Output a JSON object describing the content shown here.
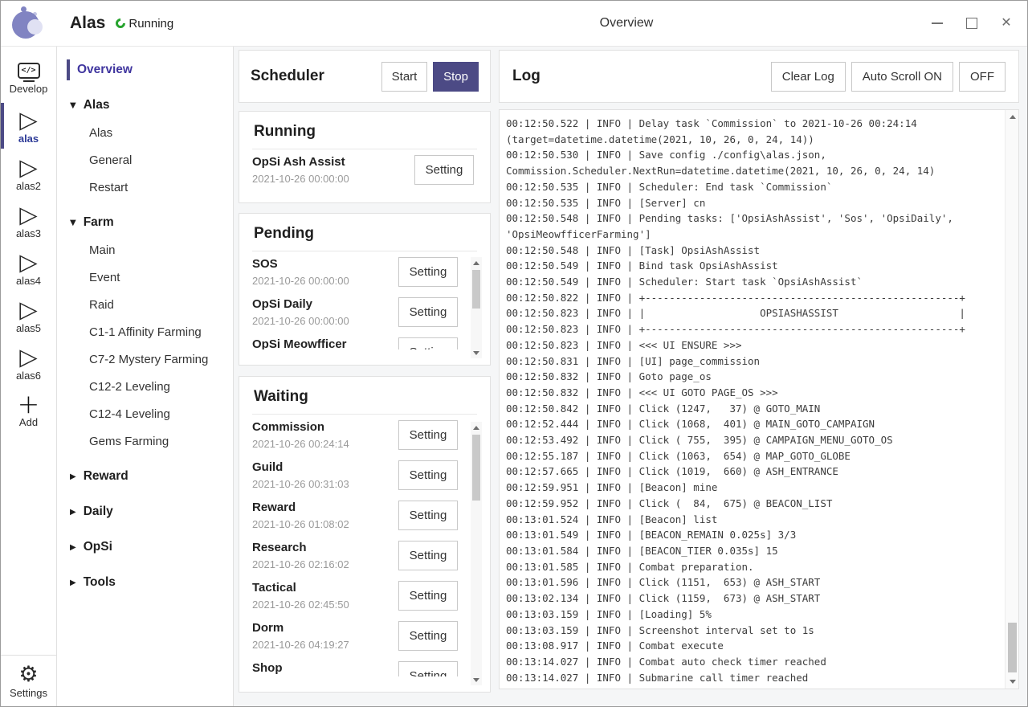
{
  "colors": {
    "accent": "#4c4a85",
    "active_nav_text": "#40369f",
    "running_green": "#26a32d",
    "logo_purple": "#8184c2",
    "logo_light": "#e0e1f3"
  },
  "titlebar": {
    "app_title": "Alas",
    "status_label": "Running",
    "window_title": "Overview"
  },
  "sidebar": {
    "items": [
      {
        "label": "Develop",
        "icon": "code-monitor",
        "active": false
      },
      {
        "label": "alas",
        "icon": "play",
        "active": true
      },
      {
        "label": "alas2",
        "icon": "play",
        "active": false
      },
      {
        "label": "alas3",
        "icon": "play",
        "active": false
      },
      {
        "label": "alas4",
        "icon": "play",
        "active": false
      },
      {
        "label": "alas5",
        "icon": "play",
        "active": false
      },
      {
        "label": "alas6",
        "icon": "play",
        "active": false
      },
      {
        "label": "Add",
        "icon": "plus",
        "active": false
      }
    ],
    "settings": {
      "label": "Settings"
    }
  },
  "nav": {
    "items": [
      {
        "label": "Overview",
        "type": "link",
        "active": true
      },
      {
        "label": "Alas",
        "type": "group",
        "expanded": true
      },
      {
        "label": "Alas",
        "type": "child"
      },
      {
        "label": "General",
        "type": "child"
      },
      {
        "label": "Restart",
        "type": "child"
      },
      {
        "label": "Farm",
        "type": "group",
        "expanded": true
      },
      {
        "label": "Main",
        "type": "child"
      },
      {
        "label": "Event",
        "type": "child"
      },
      {
        "label": "Raid",
        "type": "child"
      },
      {
        "label": "C1-1 Affinity Farming",
        "type": "child"
      },
      {
        "label": "C7-2 Mystery Farming",
        "type": "child"
      },
      {
        "label": "C12-2 Leveling",
        "type": "child"
      },
      {
        "label": "C12-4 Leveling",
        "type": "child"
      },
      {
        "label": "Gems Farming",
        "type": "child"
      },
      {
        "label": "Reward",
        "type": "group",
        "expanded": false
      },
      {
        "label": "Daily",
        "type": "group",
        "expanded": false
      },
      {
        "label": "OpSi",
        "type": "group",
        "expanded": false
      },
      {
        "label": "Tools",
        "type": "group",
        "expanded": false
      }
    ]
  },
  "scheduler": {
    "title": "Scheduler",
    "start_label": "Start",
    "stop_label": "Stop"
  },
  "setting_button_label": "Setting",
  "task_groups": [
    {
      "title": "Running",
      "scrollbar": false,
      "tasks": [
        {
          "name": "OpSi Ash Assist",
          "next_run": "2021-10-26 00:00:00"
        }
      ]
    },
    {
      "title": "Pending",
      "scrollbar": true,
      "tasks": [
        {
          "name": "SOS",
          "next_run": "2021-10-26 00:00:00"
        },
        {
          "name": "OpSi Daily",
          "next_run": "2021-10-26 00:00:00"
        },
        {
          "name": "OpSi Meowfficer Farming",
          "next_run": ""
        }
      ]
    },
    {
      "title": "Waiting",
      "scrollbar": true,
      "tasks": [
        {
          "name": "Commission",
          "next_run": "2021-10-26 00:24:14"
        },
        {
          "name": "Guild",
          "next_run": "2021-10-26 00:31:03"
        },
        {
          "name": "Reward",
          "next_run": "2021-10-26 01:08:02"
        },
        {
          "name": "Research",
          "next_run": "2021-10-26 02:16:02"
        },
        {
          "name": "Tactical",
          "next_run": "2021-10-26 02:45:50"
        },
        {
          "name": "Dorm",
          "next_run": "2021-10-26 04:19:27"
        },
        {
          "name": "Shop",
          "next_run": ""
        }
      ]
    }
  ],
  "log": {
    "title": "Log",
    "buttons": [
      "Clear Log",
      "Auto Scroll ON",
      "OFF"
    ],
    "lines": [
      "00:12:50.522 | INFO | Delay task `Commission` to 2021-10-26 00:24:14",
      "(target=datetime.datetime(2021, 10, 26, 0, 24, 14))",
      "00:12:50.530 | INFO | Save config ./config\\alas.json,",
      "Commission.Scheduler.NextRun=datetime.datetime(2021, 10, 26, 0, 24, 14)",
      "00:12:50.535 | INFO | Scheduler: End task `Commission`",
      "00:12:50.535 | INFO | [Server] cn",
      "00:12:50.548 | INFO | Pending tasks: ['OpsiAshAssist', 'Sos', 'OpsiDaily',",
      "'OpsiMeowfficerFarming']",
      "00:12:50.548 | INFO | [Task] OpsiAshAssist",
      "00:12:50.549 | INFO | Bind task OpsiAshAssist",
      "00:12:50.549 | INFO | Scheduler: Start task `OpsiAshAssist`",
      "00:12:50.822 | INFO | +----------------------------------------------------+",
      "00:12:50.823 | INFO | |                   OPSIASHASSIST                    |",
      "00:12:50.823 | INFO | +----------------------------------------------------+",
      "00:12:50.823 | INFO | <<< UI ENSURE >>>",
      "00:12:50.831 | INFO | [UI] page_commission",
      "00:12:50.832 | INFO | Goto page_os",
      "00:12:50.832 | INFO | <<< UI GOTO PAGE_OS >>>",
      "00:12:50.842 | INFO | Click (1247,   37) @ GOTO_MAIN",
      "00:12:52.444 | INFO | Click (1068,  401) @ MAIN_GOTO_CAMPAIGN",
      "00:12:53.492 | INFO | Click ( 755,  395) @ CAMPAIGN_MENU_GOTO_OS",
      "00:12:55.187 | INFO | Click (1063,  654) @ MAP_GOTO_GLOBE",
      "00:12:57.665 | INFO | Click (1019,  660) @ ASH_ENTRANCE",
      "00:12:59.951 | INFO | [Beacon] mine",
      "00:12:59.952 | INFO | Click (  84,  675) @ BEACON_LIST",
      "00:13:01.524 | INFO | [Beacon] list",
      "00:13:01.549 | INFO | [BEACON_REMAIN 0.025s] 3/3",
      "00:13:01.584 | INFO | [BEACON_TIER 0.035s] 15",
      "00:13:01.585 | INFO | Combat preparation.",
      "00:13:01.596 | INFO | Click (1151,  653) @ ASH_START",
      "00:13:02.134 | INFO | Click (1159,  673) @ ASH_START",
      "00:13:03.159 | INFO | [Loading] 5%",
      "00:13:03.159 | INFO | Screenshot interval set to 1s",
      "00:13:08.917 | INFO | Combat execute",
      "00:13:14.027 | INFO | Combat auto check timer reached",
      "00:13:14.027 | INFO | Submarine call timer reached"
    ]
  }
}
